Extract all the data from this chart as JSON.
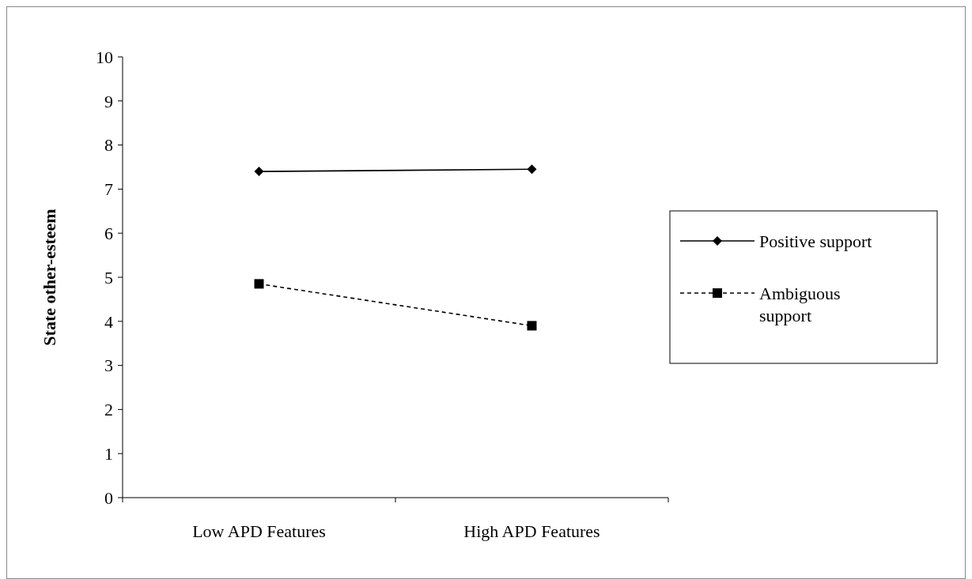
{
  "chart_data": {
    "type": "line",
    "ylabel": "State other-esteem",
    "categories": [
      "Low APD Features",
      "High APD Features"
    ],
    "ylim": [
      0,
      10
    ],
    "yticks": [
      0,
      1,
      2,
      3,
      4,
      5,
      6,
      7,
      8,
      9,
      10
    ],
    "legend": "right",
    "grid": false,
    "series": [
      {
        "name": "Positive support",
        "color": "#000000",
        "values": [
          7.4,
          7.45
        ],
        "marker": "diamond",
        "line_style": "solid"
      },
      {
        "name": "Ambiguous support",
        "color": "#000000",
        "values": [
          4.85,
          3.9
        ],
        "marker": "square",
        "line_style": "dashed"
      }
    ]
  }
}
